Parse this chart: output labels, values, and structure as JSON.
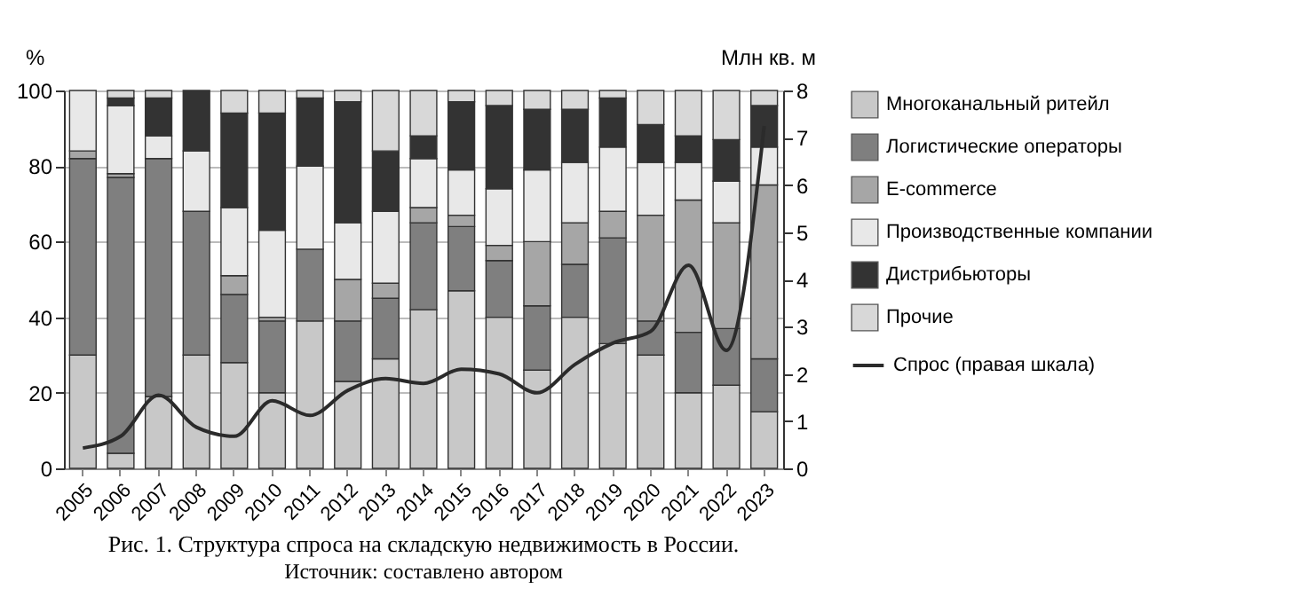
{
  "chart_data": {
    "type": "bar",
    "stacked": true,
    "title": "Рис. 1. Структура спроса на складскую недвижимость в России.",
    "annotations": [
      "Источник: составлено автором"
    ],
    "ylabel": "%",
    "y2label": "Млн кв. м",
    "categories": [
      "2005",
      "2006",
      "2007",
      "2008",
      "2009",
      "2010",
      "2011",
      "2012",
      "2013",
      "2014",
      "2015",
      "2016",
      "2017",
      "2018",
      "2019",
      "2020",
      "2021",
      "2022",
      "2023"
    ],
    "series": [
      {
        "name": "Многоканальный ритейл",
        "color": "#c8c8c8",
        "values": [
          30,
          4,
          19,
          30,
          28,
          20,
          39,
          23,
          29,
          42,
          47,
          40,
          26,
          40,
          33,
          30,
          20,
          22,
          15
        ]
      },
      {
        "name": "Логистические операторы",
        "color": "#7f7f7f",
        "values": [
          52,
          73,
          63,
          38,
          18,
          19,
          19,
          16,
          16,
          23,
          17,
          15,
          17,
          14,
          28,
          9,
          16,
          15,
          14
        ]
      },
      {
        "name": "E-commerce",
        "color": "#a6a6a6",
        "values": [
          2,
          1,
          0,
          0,
          5,
          1,
          0,
          11,
          4,
          4,
          3,
          4,
          17,
          11,
          7,
          28,
          35,
          28,
          46
        ]
      },
      {
        "name": "Производственные компании",
        "color": "#e8e8e8",
        "values": [
          16,
          18,
          6,
          16,
          18,
          23,
          22,
          15,
          19,
          13,
          12,
          15,
          19,
          16,
          17,
          14,
          10,
          11,
          10
        ]
      },
      {
        "name": "Дистрибьюторы",
        "color": "#333333",
        "values": [
          0,
          2,
          10,
          16,
          25,
          31,
          18,
          32,
          16,
          6,
          18,
          22,
          16,
          14,
          13,
          10,
          7,
          11,
          11
        ]
      },
      {
        "name": "Прочие",
        "color": "#d8d8d8",
        "values": [
          0,
          2,
          2,
          0,
          6,
          6,
          2,
          3,
          16,
          12,
          3,
          4,
          5,
          5,
          2,
          9,
          12,
          13,
          4
        ]
      },
      {
        "name": "Спрос (правая шкала)",
        "type": "line",
        "axis": "y2",
        "color": "#2b2b2b",
        "values": [
          0.43,
          0.68,
          1.55,
          0.87,
          0.68,
          1.43,
          1.12,
          1.65,
          1.9,
          1.8,
          2.1,
          2.0,
          1.6,
          2.2,
          2.65,
          2.9,
          4.3,
          2.5,
          7.25
        ]
      }
    ],
    "ylim": [
      0,
      100
    ],
    "yticks": [
      0,
      20,
      40,
      60,
      80,
      100
    ],
    "y2lim": [
      0,
      8
    ],
    "y2ticks": [
      0,
      1,
      2,
      3,
      4,
      5,
      6,
      7,
      8
    ],
    "grid": "y",
    "legend": "right",
    "line_style": "solid"
  }
}
